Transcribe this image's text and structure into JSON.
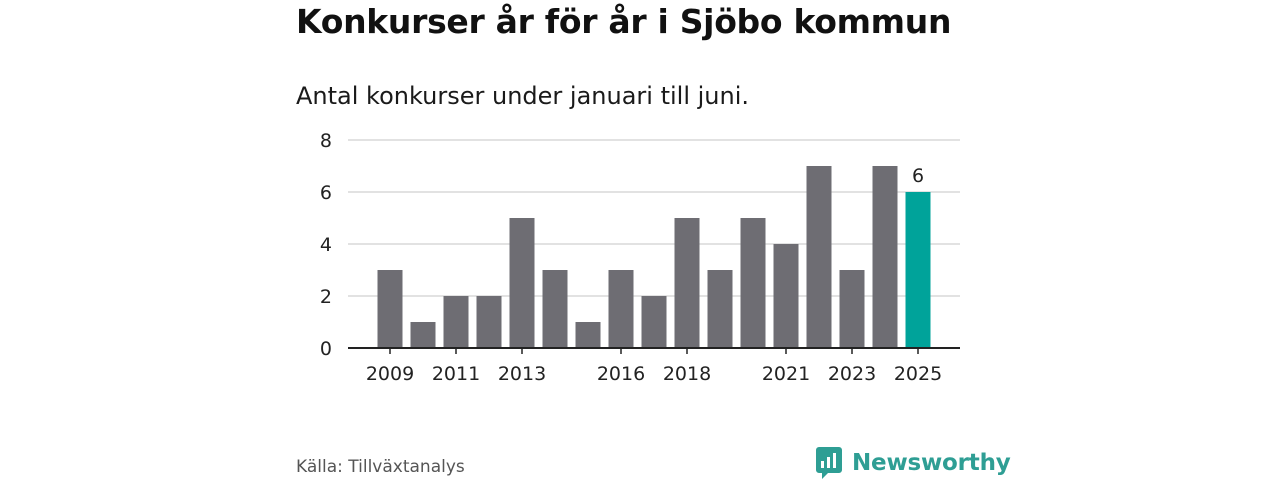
{
  "header": {
    "title": "Konkurser år för år i Sjöbo kommun",
    "subtitle": "Antal konkurser under januari till juni."
  },
  "footer": {
    "source": "Källa: Tillväxtanalys",
    "brand": "Newsworthy"
  },
  "colors": {
    "bar": "#6e6d73",
    "highlight": "#00a39a",
    "grid": "#d9d9d9",
    "axis": "#222222",
    "brand": "#2e9e94"
  },
  "icons": {
    "brand_logo": "newsworthy-logo-icon"
  },
  "chart_data": {
    "type": "bar",
    "categories": [
      "2009",
      "2010",
      "2011",
      "2012",
      "2013",
      "2014",
      "2015",
      "2016",
      "2017",
      "2018",
      "2019",
      "2020",
      "2021",
      "2022",
      "2023",
      "2024",
      "2025"
    ],
    "values": [
      3,
      1,
      2,
      2,
      5,
      3,
      1,
      3,
      2,
      5,
      3,
      5,
      4,
      7,
      3,
      7,
      6
    ],
    "highlight_index": 16,
    "highlight_label": "6",
    "tick_labels_x": [
      "2009",
      "2011",
      "2013",
      "2016",
      "2018",
      "2021",
      "2023",
      "2025"
    ],
    "y_ticks": [
      0,
      2,
      4,
      6,
      8
    ],
    "ylim": [
      0,
      8
    ],
    "grid": true,
    "xlabel": "",
    "ylabel": ""
  }
}
